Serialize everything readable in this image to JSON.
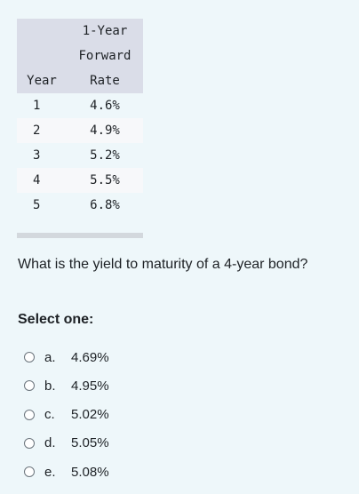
{
  "table": {
    "header_row1": [
      "",
      "1-Year"
    ],
    "header_row2": [
      "",
      "Forward"
    ],
    "header_row3": [
      "Year",
      "Rate"
    ],
    "rows": [
      [
        "1",
        "4.6%"
      ],
      [
        "2",
        "4.9%"
      ],
      [
        "3",
        "5.2%"
      ],
      [
        "4",
        "5.5%"
      ],
      [
        "5",
        "6.8%"
      ]
    ]
  },
  "question": "What is the yield to maturity of a 4-year bond?",
  "select_label": "Select one:",
  "options": [
    {
      "letter": "a.",
      "text": "4.69%"
    },
    {
      "letter": "b.",
      "text": "4.95%"
    },
    {
      "letter": "c.",
      "text": "5.02%"
    },
    {
      "letter": "d.",
      "text": "5.05%"
    },
    {
      "letter": "e.",
      "text": "5.08%"
    }
  ]
}
